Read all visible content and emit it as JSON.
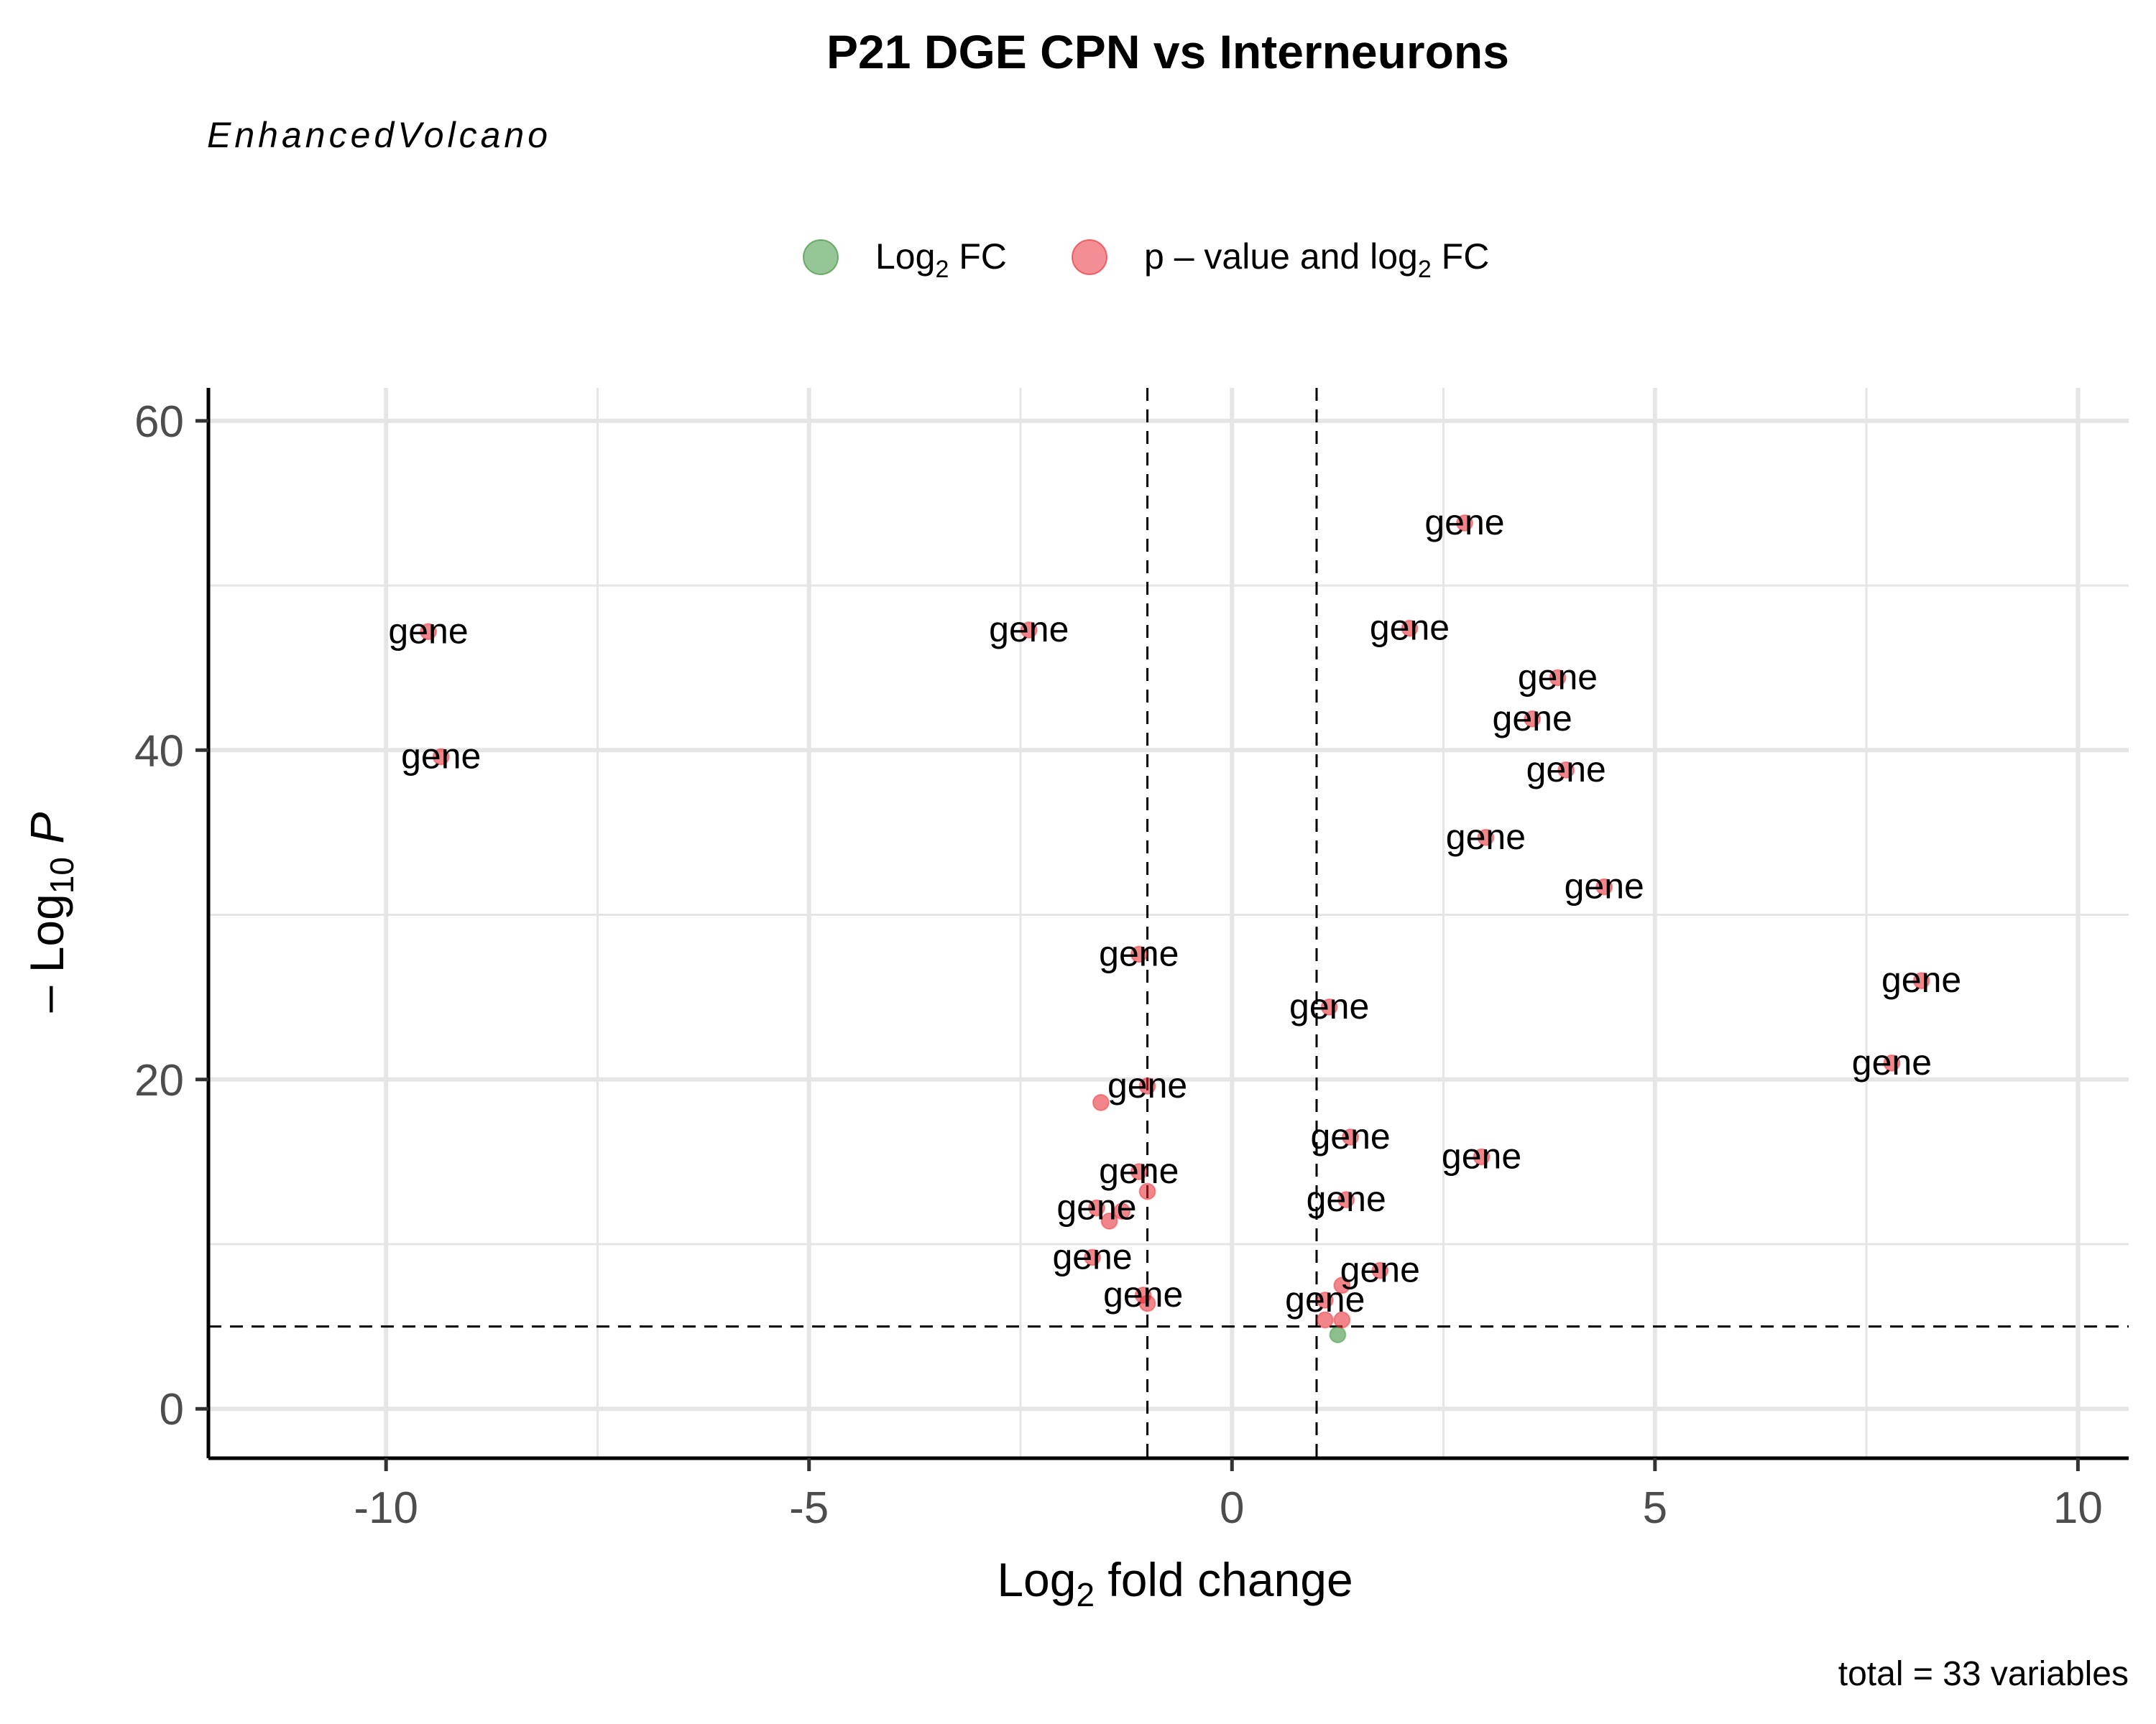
{
  "chart_data": {
    "type": "scatter",
    "title": "P21 DGE CPN vs Interneurons",
    "subtitle": "EnhancedVolcano",
    "xlabel": "Log2 fold change",
    "ylabel": "-Log10 P",
    "xlim": [
      -12.1,
      10.6
    ],
    "ylim": [
      -3,
      62
    ],
    "xticks": [
      -10,
      -5,
      0,
      5,
      10
    ],
    "yticks": [
      0,
      20,
      40,
      60
    ],
    "grid": true,
    "legend_position": "top",
    "thresholds": {
      "log2fc": [
        -1,
        1
      ],
      "neg_log10_p": 5
    },
    "caption": "total = 33 variables",
    "legend": [
      {
        "name": "Log2 FC",
        "color": "#2e8b2e"
      },
      {
        "name": "p - value and log2 FC",
        "color": "#e8202a"
      }
    ],
    "series": [
      {
        "name": "Log2 FC",
        "color": "#2e8b2e",
        "points": [
          {
            "x": 1.25,
            "y": 4.5,
            "label": ""
          }
        ]
      },
      {
        "name": "p - value and log2 FC",
        "color": "#e8202a",
        "points": [
          {
            "x": 2.75,
            "y": 53.8,
            "label": "gene"
          },
          {
            "x": -9.5,
            "y": 47.2,
            "label": "gene"
          },
          {
            "x": -2.4,
            "y": 47.3,
            "label": "gene"
          },
          {
            "x": 2.1,
            "y": 47.4,
            "label": "gene"
          },
          {
            "x": 3.85,
            "y": 44.4,
            "label": "gene"
          },
          {
            "x": 3.55,
            "y": 41.9,
            "label": "gene"
          },
          {
            "x": -9.35,
            "y": 39.6,
            "label": "gene"
          },
          {
            "x": 3.95,
            "y": 38.8,
            "label": "gene"
          },
          {
            "x": 3.0,
            "y": 34.7,
            "label": "gene"
          },
          {
            "x": 4.4,
            "y": 31.7,
            "label": "gene"
          },
          {
            "x": -1.1,
            "y": 27.6,
            "label": "gene"
          },
          {
            "x": 8.15,
            "y": 26.0,
            "label": "gene"
          },
          {
            "x": 1.15,
            "y": 24.4,
            "label": "gene"
          },
          {
            "x": 7.8,
            "y": 21.0,
            "label": "gene"
          },
          {
            "x": -1.0,
            "y": 19.6,
            "label": "gene"
          },
          {
            "x": -1.55,
            "y": 18.6,
            "label": ""
          },
          {
            "x": 1.4,
            "y": 16.5,
            "label": "gene"
          },
          {
            "x": 2.95,
            "y": 15.3,
            "label": "gene"
          },
          {
            "x": -1.1,
            "y": 14.4,
            "label": "gene"
          },
          {
            "x": -1.0,
            "y": 13.2,
            "label": ""
          },
          {
            "x": 1.35,
            "y": 12.7,
            "label": "gene"
          },
          {
            "x": -1.6,
            "y": 12.2,
            "label": "gene"
          },
          {
            "x": -1.3,
            "y": 12.0,
            "label": ""
          },
          {
            "x": -1.45,
            "y": 11.4,
            "label": ""
          },
          {
            "x": -1.65,
            "y": 9.2,
            "label": "gene"
          },
          {
            "x": 1.75,
            "y": 8.4,
            "label": "gene"
          },
          {
            "x": 1.3,
            "y": 7.5,
            "label": ""
          },
          {
            "x": -1.05,
            "y": 6.9,
            "label": "gene"
          },
          {
            "x": -1.0,
            "y": 6.4,
            "label": ""
          },
          {
            "x": 1.1,
            "y": 6.6,
            "label": "gene"
          },
          {
            "x": 1.1,
            "y": 5.4,
            "label": ""
          },
          {
            "x": 1.3,
            "y": 5.4,
            "label": ""
          }
        ]
      }
    ]
  }
}
